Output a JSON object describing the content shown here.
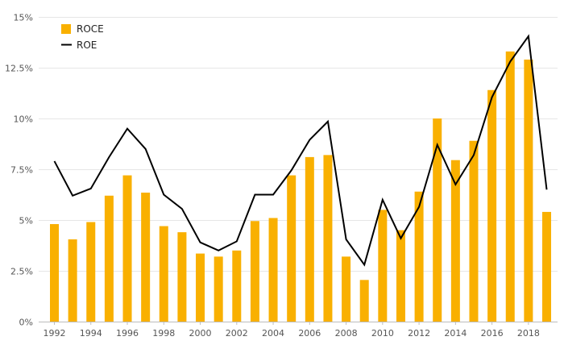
{
  "chart_data": {
    "type": "bar+line",
    "x": [
      1992,
      1993,
      1994,
      1995,
      1996,
      1997,
      1998,
      1999,
      2000,
      2001,
      2002,
      2003,
      2004,
      2005,
      2006,
      2007,
      2008,
      2009,
      2010,
      2011,
      2012,
      2013,
      2014,
      2015,
      2016,
      2017,
      2018,
      2019
    ],
    "x_tick_labels": [
      "1992",
      "1994",
      "1996",
      "1998",
      "2000",
      "2002",
      "2004",
      "2006",
      "2008",
      "2010",
      "2012",
      "2014",
      "2016",
      "2018"
    ],
    "y_ticks": [
      0,
      2.5,
      5,
      7.5,
      10,
      12.5,
      15
    ],
    "y_tick_labels": [
      "0%",
      "2.5%",
      "5%",
      "7.5%",
      "10%",
      "12.5%",
      "15%"
    ],
    "ylim": [
      0,
      15
    ],
    "grid": true,
    "legend_position": "top-left",
    "series": [
      {
        "name": "ROCE",
        "type": "bar",
        "color": "#f9b000",
        "values": [
          4.8,
          4.05,
          4.9,
          6.2,
          7.2,
          6.35,
          4.7,
          4.4,
          3.35,
          3.2,
          3.5,
          4.95,
          5.1,
          7.2,
          8.1,
          8.2,
          3.2,
          2.05,
          5.5,
          4.5,
          6.4,
          10.0,
          7.95,
          8.9,
          11.4,
          13.3,
          12.9,
          5.4
        ]
      },
      {
        "name": "ROE",
        "type": "line",
        "color": "#000000",
        "values": [
          7.9,
          6.2,
          6.55,
          8.1,
          9.5,
          8.5,
          6.25,
          5.55,
          3.9,
          3.5,
          3.95,
          6.25,
          6.25,
          7.45,
          8.95,
          9.85,
          4.05,
          2.8,
          6.0,
          4.1,
          5.65,
          8.7,
          6.75,
          8.2,
          11.05,
          12.8,
          14.05,
          6.5
        ]
      }
    ]
  }
}
